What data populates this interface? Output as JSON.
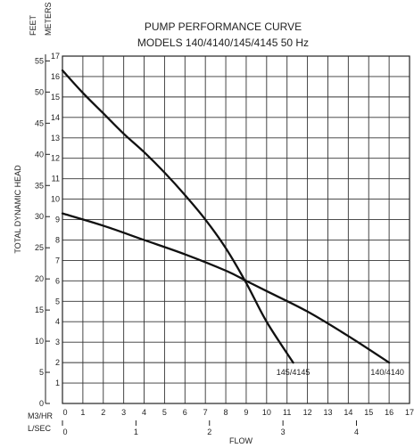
{
  "chart_data": {
    "type": "line",
    "title": "PUMP PERFORMANCE CURVE",
    "subtitle": "MODELS 140/4140/145/4145   50 Hz",
    "ylabel": "TOTAL DYNAMIC HEAD",
    "xlabel": "FLOW",
    "y_meters_label": "METERS",
    "y_feet_label": "FEET",
    "x_m3hr_label": "M3/HR",
    "x_lsec_label": "L/SEC",
    "grid": true,
    "meters_range": [
      0,
      17
    ],
    "meters_ticks": [
      1,
      2,
      3,
      4,
      5,
      6,
      7,
      8,
      9,
      10,
      11,
      12,
      13,
      14,
      15,
      16,
      17
    ],
    "feet_ticks": [
      0,
      5,
      10,
      15,
      20,
      25,
      30,
      35,
      40,
      45,
      50,
      55
    ],
    "m3hr_range": [
      0,
      17
    ],
    "m3hr_ticks": [
      0,
      1,
      2,
      3,
      4,
      5,
      6,
      7,
      8,
      9,
      10,
      11,
      12,
      13,
      14,
      15,
      16,
      17
    ],
    "lsec_ticks": [
      0,
      1,
      2,
      3,
      4
    ],
    "series": [
      {
        "name": "145/4145",
        "x": [
          0,
          1,
          2,
          3,
          4,
          5,
          6,
          7,
          8,
          9,
          10,
          11.3
        ],
        "y": [
          16.3,
          15.2,
          14.2,
          13.2,
          12.3,
          11.3,
          10.2,
          9.0,
          7.6,
          5.9,
          4.0,
          2.0
        ]
      },
      {
        "name": "140/4140",
        "x": [
          0,
          2,
          4,
          6,
          8,
          9,
          10,
          12,
          14,
          16
        ],
        "y": [
          9.3,
          8.7,
          8.0,
          7.3,
          6.5,
          6.0,
          5.5,
          4.5,
          3.3,
          2.0
        ]
      }
    ]
  }
}
